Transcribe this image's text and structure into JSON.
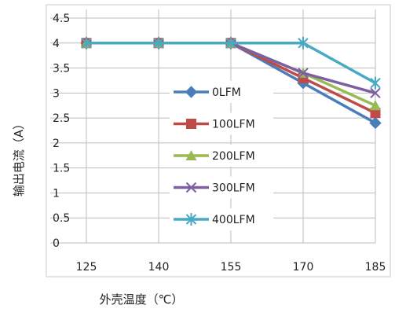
{
  "chart_data": {
    "type": "line",
    "title": "",
    "xlabel": "外壳温度（℃）",
    "ylabel": "输出电流（A）",
    "categories": [
      "125",
      "140",
      "155",
      "170",
      "185"
    ],
    "x": [
      125,
      140,
      155,
      170,
      185
    ],
    "ylim": [
      0,
      4.5
    ],
    "yticks": [
      0,
      0.5,
      1,
      1.5,
      2,
      2.5,
      3,
      3.5,
      4,
      4.5
    ],
    "ytick_labels": [
      "0",
      "0.5",
      "1",
      "1.5",
      "2",
      "2.5",
      "3",
      "3.5",
      "4",
      "4.5"
    ],
    "grid": true,
    "legend_position": "inside-center-right",
    "series": [
      {
        "name": "0LFM",
        "values": [
          4,
          4,
          4,
          3.2,
          2.4
        ],
        "color": "#4a7ebb",
        "marker": "diamond"
      },
      {
        "name": "100LFM",
        "values": [
          4,
          4,
          4,
          3.3,
          2.6
        ],
        "color": "#be4b48",
        "marker": "square"
      },
      {
        "name": "200LFM",
        "values": [
          4,
          4,
          4,
          3.4,
          2.75
        ],
        "color": "#98b954",
        "marker": "triangle"
      },
      {
        "name": "300LFM",
        "values": [
          4,
          4,
          4,
          3.4,
          3.0
        ],
        "color": "#7d60a0",
        "marker": "x"
      },
      {
        "name": "400LFM",
        "values": [
          4,
          4,
          4,
          4.0,
          3.2
        ],
        "color": "#46aac5",
        "marker": "star"
      }
    ]
  }
}
